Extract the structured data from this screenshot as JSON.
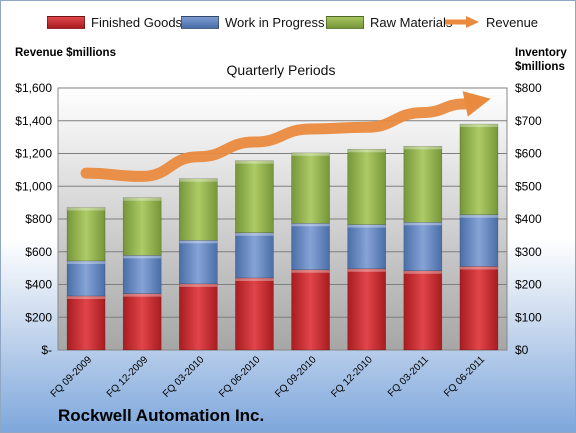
{
  "company": "Rockwell Automation Inc.",
  "legend": [
    {
      "label": "Finished Goods",
      "color": "#c0262a"
    },
    {
      "label": "Work in Progress",
      "color": "#5b7fb8"
    },
    {
      "label": "Raw Materials",
      "color": "#87a83e"
    },
    {
      "label": "Revenue",
      "color": "#ea8a3e"
    }
  ],
  "chart_data": {
    "type": "bar",
    "stacked": true,
    "subtitle": "Quarterly Periods",
    "ylabel_left": "Revenue $millions",
    "ylabel_right": "Inventory $millions",
    "categories": [
      "FQ 09-2009",
      "FQ 12-2009",
      "FQ 03-2010",
      "FQ 06-2010",
      "FQ 09-2010",
      "FQ 12-2010",
      "FQ 03-2011",
      "FQ 06-2011"
    ],
    "ylim_left": [
      0,
      1600
    ],
    "ylim_right": [
      0,
      800
    ],
    "left_ticks": [
      "$-",
      "$200",
      "$400",
      "$600",
      "$800",
      "$1,000",
      "$1,200",
      "$1,400",
      "$1,600"
    ],
    "right_ticks": [
      "$0",
      "$100",
      "$200",
      "$300",
      "$400",
      "$500",
      "$600",
      "$700",
      "$800"
    ],
    "series": [
      {
        "name": "Finished Goods",
        "axis": "right",
        "color": "#c0262a",
        "values": [
          165,
          172,
          202,
          220,
          245,
          248,
          242,
          255
        ]
      },
      {
        "name": "Work in Progress",
        "axis": "right",
        "color": "#5b7fb8",
        "values": [
          107,
          117,
          133,
          138,
          142,
          135,
          148,
          158
        ]
      },
      {
        "name": "Raw Materials",
        "axis": "right",
        "color": "#87a83e",
        "values": [
          163,
          176,
          188,
          220,
          215,
          230,
          232,
          277
        ]
      },
      {
        "name": "Revenue",
        "axis": "left",
        "type": "line",
        "color": "#ea8a3e",
        "values": [
          1080,
          1060,
          1180,
          1270,
          1350,
          1360,
          1450,
          1520
        ]
      }
    ],
    "grid": true,
    "legend_position": "top"
  }
}
